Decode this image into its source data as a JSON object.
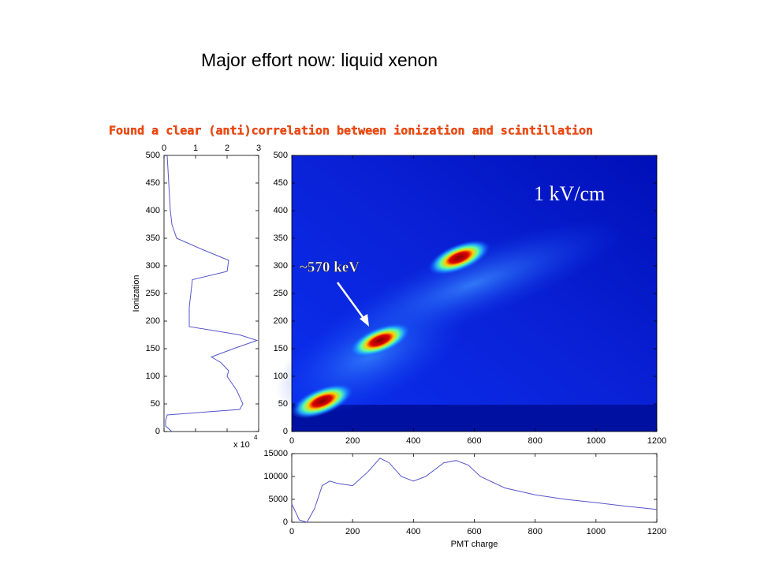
{
  "title": "Major effort now: liquid xenon",
  "subtitle": "Found a clear (anti)correlation between ionization and scintillation",
  "chart_data": [
    {
      "type": "line",
      "orientation": "vertical",
      "y_label": "Ionization",
      "x_multiplier": "x 10",
      "x_exponent": "4",
      "color": "#5555cc",
      "y": [
        0,
        10,
        20,
        30,
        40,
        50,
        75,
        100,
        110,
        125,
        135,
        150,
        165,
        175,
        190,
        200,
        225,
        250,
        275,
        290,
        310,
        330,
        350,
        375,
        400,
        450,
        500
      ],
      "values": [
        0.25,
        0.05,
        0.05,
        0.1,
        2.4,
        2.5,
        2.3,
        2.0,
        2.05,
        1.8,
        1.5,
        2.2,
        2.95,
        2.4,
        0.8,
        0.8,
        0.8,
        0.85,
        0.9,
        2.0,
        2.05,
        1.2,
        0.4,
        0.25,
        0.2,
        0.15,
        0.1
      ],
      "xlim": [
        0,
        3
      ],
      "xticks": [
        0,
        1,
        2,
        3
      ],
      "ylim": [
        0,
        500
      ],
      "yticks": [
        0,
        50,
        100,
        150,
        200,
        250,
        300,
        350,
        400,
        450,
        500
      ]
    },
    {
      "type": "heatmap",
      "annotation": "~570 keV",
      "field_label": "1 kV/cm",
      "x": [
        100,
        290,
        550
      ],
      "y": [
        55,
        165,
        315
      ],
      "xlim": [
        0,
        1200
      ],
      "xticks": [
        0,
        200,
        400,
        600,
        800,
        1000,
        1200
      ],
      "ylim": [
        0,
        500
      ],
      "yticks": [
        0,
        50,
        100,
        150,
        200,
        250,
        300,
        350,
        400,
        450,
        500
      ]
    },
    {
      "type": "line",
      "orientation": "horizontal",
      "x_label": "PMT charge",
      "color": "#5555cc",
      "x": [
        0,
        25,
        50,
        75,
        100,
        125,
        150,
        200,
        250,
        290,
        320,
        360,
        400,
        440,
        500,
        540,
        580,
        620,
        700,
        800,
        900,
        1000,
        1100,
        1200
      ],
      "values": [
        4000,
        500,
        0,
        3000,
        8000,
        9000,
        8500,
        8000,
        11000,
        14000,
        13000,
        10000,
        9000,
        10000,
        13000,
        13500,
        12500,
        10000,
        7500,
        6000,
        5000,
        4300,
        3500,
        2800
      ],
      "xlim": [
        0,
        1200
      ],
      "xticks": [
        0,
        200,
        400,
        600,
        800,
        1000,
        1200
      ],
      "ylim": [
        0,
        15000
      ],
      "yticks": [
        0,
        5000,
        10000,
        15000
      ]
    }
  ]
}
